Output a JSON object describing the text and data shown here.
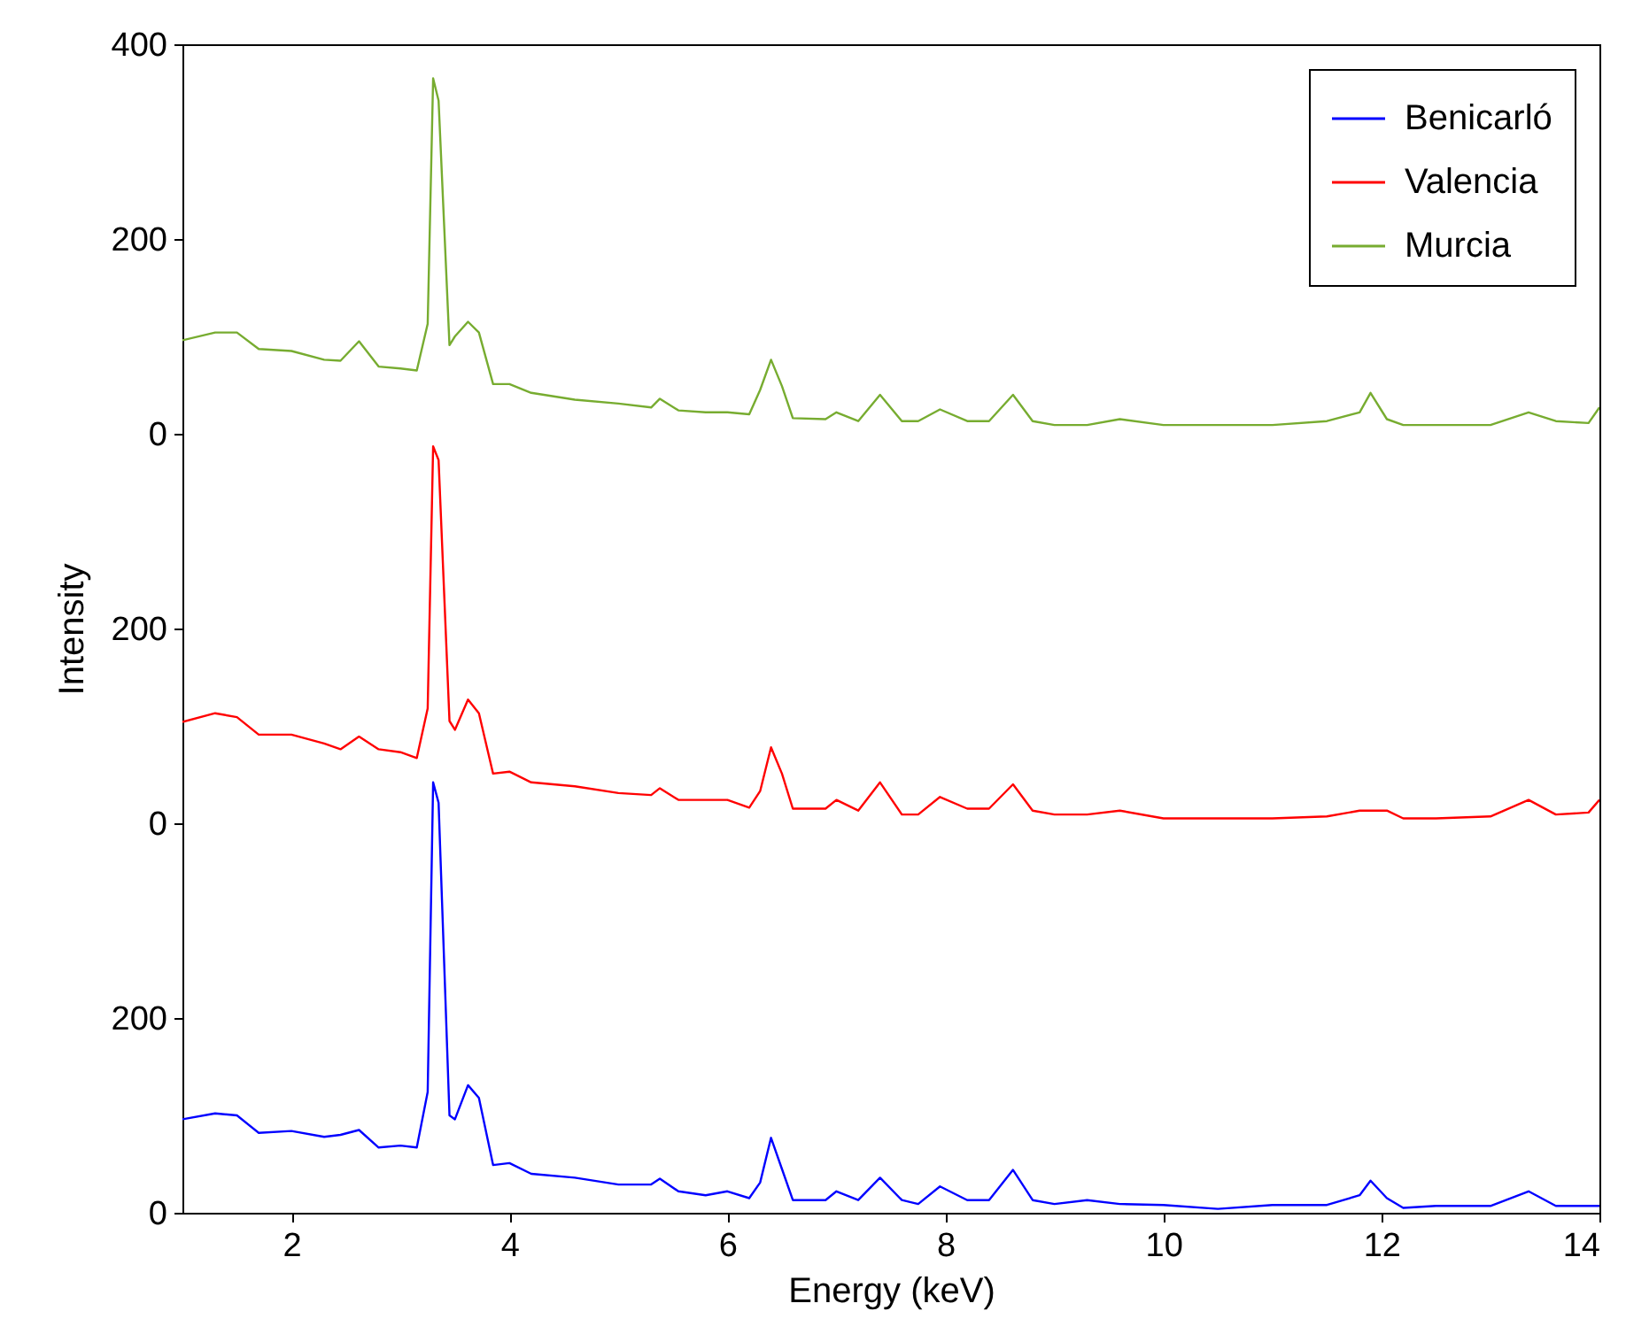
{
  "chart_data": {
    "type": "line",
    "xlabel": "Energy (keV)",
    "y2label": "Intensity",
    "xlim": [
      1,
      14
    ],
    "xticks": [
      2,
      4,
      6,
      8,
      10,
      12,
      14
    ],
    "ylim": [
      0,
      1200
    ],
    "yticks": [
      0,
      200
    ],
    "y2lim": [
      -400,
      800
    ],
    "y2ticks": [
      0,
      200
    ],
    "y3lim": [
      -800,
      400
    ],
    "y3ticks": [
      0,
      200,
      400
    ],
    "legend": "top right",
    "x": [
      1.0,
      1.3,
      1.5,
      1.7,
      2.0,
      2.3,
      2.45,
      2.62,
      2.8,
      3.0,
      3.15,
      3.25,
      3.3,
      3.35,
      3.45,
      3.5,
      3.62,
      3.72,
      3.85,
      4.0,
      4.2,
      4.6,
      5.0,
      5.3,
      5.38,
      5.55,
      5.8,
      6.0,
      6.2,
      6.3,
      6.4,
      6.5,
      6.6,
      6.9,
      7.0,
      7.2,
      7.4,
      7.6,
      7.75,
      7.95,
      8.2,
      8.4,
      8.62,
      8.8,
      9.0,
      9.3,
      9.6,
      10.0,
      10.5,
      11.0,
      11.5,
      11.8,
      11.9,
      12.05,
      12.2,
      12.5,
      13.0,
      13.35,
      13.6,
      13.9,
      14.0
    ],
    "series": [
      {
        "name": "Benicarló",
        "color": "#0000ff",
        "values": [
          96,
          102,
          100,
          82,
          84,
          78,
          80,
          85,
          67,
          69,
          67,
          124,
          442,
          421,
          100,
          96,
          131,
          118,
          49,
          51,
          40,
          36,
          29,
          29,
          35,
          22,
          18,
          22,
          15,
          31,
          77,
          45,
          13,
          13,
          22,
          13,
          36,
          13,
          9,
          27,
          13,
          13,
          44,
          13,
          9,
          13,
          9,
          8,
          4,
          8,
          8,
          18,
          33,
          15,
          5,
          7,
          7,
          22,
          7,
          7,
          7
        ]
      },
      {
        "name": "Valencia",
        "color": "#ff0000",
        "axis": "y2",
        "values": [
          104,
          113,
          109,
          91,
          91,
          82,
          76,
          89,
          76,
          73,
          67,
          118,
          387,
          373,
          105,
          96,
          127,
          113,
          51,
          53,
          42,
          38,
          31,
          29,
          36,
          24,
          24,
          24,
          16,
          33,
          78,
          51,
          15,
          15,
          24,
          13,
          42,
          9,
          9,
          27,
          15,
          15,
          40,
          13,
          9,
          9,
          13,
          5,
          5,
          5,
          7,
          13,
          13,
          13,
          5,
          5,
          7,
          24,
          9,
          11,
          24
        ]
      },
      {
        "name": "Murcia",
        "color": "#77ac30",
        "axis": "y3",
        "values": [
          96,
          104,
          104,
          87,
          85,
          76,
          75,
          95,
          69,
          67,
          65,
          113,
          365,
          342,
          91,
          100,
          115,
          104,
          51,
          51,
          42,
          35,
          31,
          27,
          36,
          24,
          22,
          22,
          20,
          45,
          76,
          49,
          16,
          15,
          22,
          13,
          40,
          13,
          13,
          25,
          13,
          13,
          40,
          13,
          9,
          9,
          15,
          9,
          9,
          9,
          13,
          22,
          42,
          15,
          9,
          9,
          9,
          22,
          13,
          11,
          27
        ]
      }
    ]
  }
}
